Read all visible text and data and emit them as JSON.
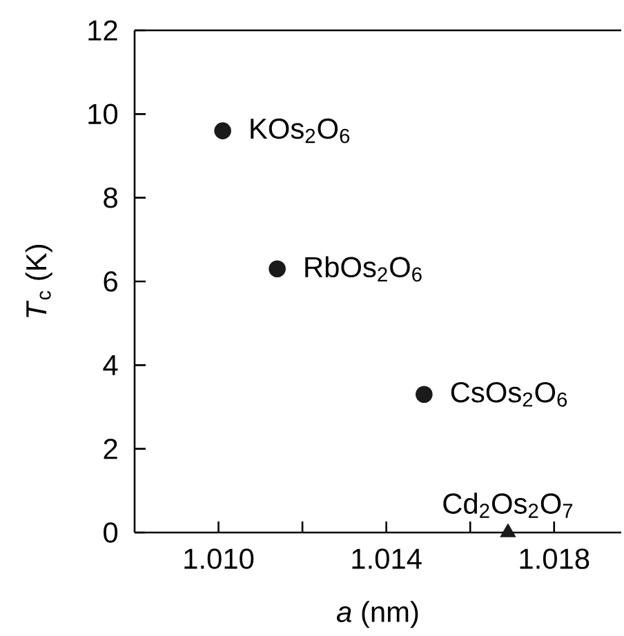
{
  "chart_data": {
    "type": "scatter",
    "xlabel": "*a* (nm)",
    "ylabel": "*T*$_{c}$ (K)",
    "series": [
      {
        "color": "#1a1a1a",
        "marker": "circle",
        "x": [
          1.0101,
          1.0114,
          1.0149
        ],
        "values": [
          9.6,
          6.3,
          3.3
        ]
      },
      {
        "color": "#1a1a1a",
        "marker": "triangle",
        "x": [
          1.0169
        ],
        "values": [
          0
        ]
      }
    ],
    "xlim": [
      1.008,
      1.0196
    ],
    "ylim": [
      0,
      12
    ],
    "xticks": [
      {
        "value": 1.01,
        "label": "1.010"
      },
      {
        "value": 1.012,
        "label": null
      },
      {
        "value": 1.014,
        "label": "1.014"
      },
      {
        "value": 1.016,
        "label": null
      },
      {
        "value": 1.018,
        "label": "1.018"
      }
    ],
    "yticks": [
      0,
      2,
      4,
      6,
      8,
      10,
      12
    ],
    "annotations": [
      {
        "text": "KOs$_{2}$O$_{6}$",
        "x": 1.0101,
        "y": 9.6
      },
      {
        "text": "RbOs$_{2}$O$_{6}$",
        "x": 1.0114,
        "y": 6.3
      },
      {
        "text": "CsOs$_{2}$O$_{6}$",
        "x": 1.0149,
        "y": 3.3
      },
      {
        "text": "Cd$_{2}$Os$_{2}$O$_{7}$",
        "x": 1.0169,
        "y": 0
      }
    ]
  }
}
